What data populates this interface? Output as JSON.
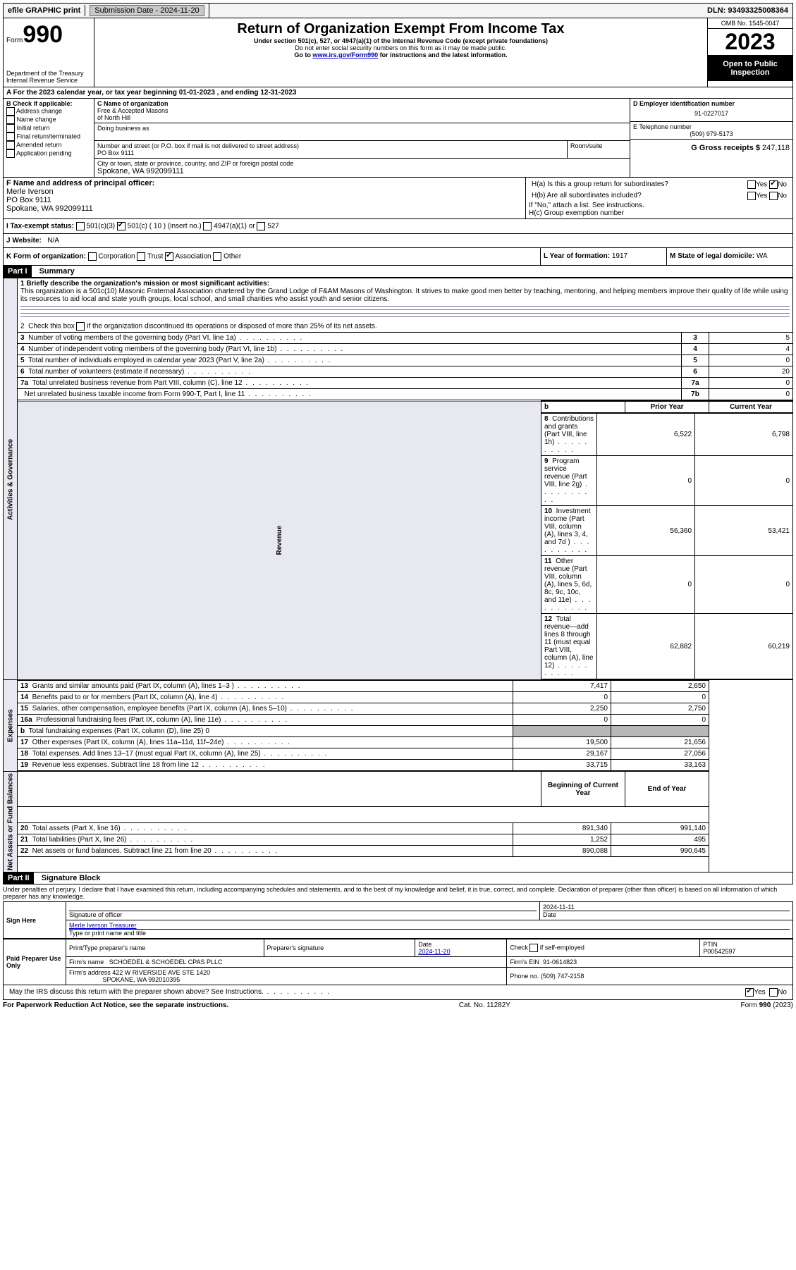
{
  "topBar": {
    "efile": "efile GRAPHIC print",
    "submission": "Submission Date - 2024-11-20",
    "dln": "DLN: 93493325008364"
  },
  "header": {
    "formWord": "Form",
    "formNum": "990",
    "title": "Return of Organization Exempt From Income Tax",
    "sub1": "Under section 501(c), 527, or 4947(a)(1) of the Internal Revenue Code (except private foundations)",
    "sub2": "Do not enter social security numbers on this form as it may be made public.",
    "sub3a": "Go to ",
    "sub3link": "www.irs.gov/Form990",
    "sub3b": " for instructions and the latest information.",
    "dept": "Department of the Treasury",
    "irs": "Internal Revenue Service",
    "omb": "OMB No. 1545-0047",
    "year": "2023",
    "open": "Open to Public Inspection"
  },
  "rowA": "A For the 2023 calendar year, or tax year beginning 01-01-2023   , and ending 12-31-2023",
  "boxB": {
    "label": "B Check if applicable:",
    "items": [
      "Address change",
      "Name change",
      "Initial return",
      "Final return/terminated",
      "Amended return",
      "Application pending"
    ]
  },
  "boxC": {
    "nameLabel": "C Name of organization",
    "name1": "Free & Accepted Masons",
    "name2": "of North Hill",
    "dba": "Doing business as",
    "streetLabel": "Number and street (or P.O. box if mail is not delivered to street address)",
    "street": "PO Box 9111",
    "room": "Room/suite",
    "cityLabel": "City or town, state or province, country, and ZIP or foreign postal code",
    "city": "Spokane, WA  992099111"
  },
  "boxD": {
    "label": "D Employer identification number",
    "value": "91-0227017"
  },
  "boxE": {
    "label": "E Telephone number",
    "value": "(509) 979-5173"
  },
  "boxG": {
    "label": "G Gross receipts $",
    "value": "247,118"
  },
  "boxF": {
    "label": "F  Name and address of principal officer:",
    "name": "Merle Iverson",
    "addr1": "PO Box 9111",
    "addr2": "Spokane, WA  992099111"
  },
  "boxH": {
    "ha": "H(a)  Is this a group return for subordinates?",
    "hb": "H(b)  Are all subordinates included?",
    "hnote": "If \"No,\" attach a list. See instructions.",
    "hc": "H(c)  Group exemption number",
    "yes": "Yes",
    "no": "No"
  },
  "rowI": {
    "label": "I   Tax-exempt status:",
    "c3": "501(c)(3)",
    "c": "501(c) ( 10 ) (insert no.)",
    "a47": "4947(a)(1) or",
    "n527": "527"
  },
  "rowJ": {
    "label": "J   Website:",
    "value": "N/A"
  },
  "rowK": {
    "label": "K Form of organization:",
    "corp": "Corporation",
    "trust": "Trust",
    "assoc": "Association",
    "other": "Other"
  },
  "rowL": {
    "label": "L Year of formation:",
    "value": "1917"
  },
  "rowM": {
    "label": "M State of legal domicile:",
    "value": "WA"
  },
  "part1": {
    "hdr": "Part I",
    "title": "Summary"
  },
  "summary": {
    "line1label": "1   Briefly describe the organization's mission or most significant activities:",
    "mission": "This organization is a 501c(10) Masonic Fraternal Association chartered by the Grand Lodge of F&AM Masons of Washington. It strives to make good men better by teaching, mentoring, and helping members improve their quality of life while using its resources to aid local and state youth groups, local school, and small charities who assist youth and senior citizens.",
    "line2": "2   Check this box   if the organization discontinued its operations or disposed of more than 25% of its net assets.",
    "rows": [
      {
        "n": "3",
        "t": "Number of voting members of the governing body (Part VI, line 1a)",
        "c": "3",
        "v": "5"
      },
      {
        "n": "4",
        "t": "Number of independent voting members of the governing body (Part VI, line 1b)",
        "c": "4",
        "v": "4"
      },
      {
        "n": "5",
        "t": "Total number of individuals employed in calendar year 2023 (Part V, line 2a)",
        "c": "5",
        "v": "0"
      },
      {
        "n": "6",
        "t": "Total number of volunteers (estimate if necessary)",
        "c": "6",
        "v": "20"
      },
      {
        "n": "7a",
        "t": "Total unrelated business revenue from Part VIII, column (C), line 12",
        "c": "7a",
        "v": "0"
      },
      {
        "n": "",
        "t": "Net unrelated business taxable income from Form 990-T, Part I, line 11",
        "c": "7b",
        "v": "0"
      }
    ],
    "priorHdr": "Prior Year",
    "currHdr": "Current Year",
    "revRows": [
      {
        "n": "8",
        "t": "Contributions and grants (Part VIII, line 1h)",
        "p": "6,522",
        "c": "6,798"
      },
      {
        "n": "9",
        "t": "Program service revenue (Part VIII, line 2g)",
        "p": "0",
        "c": "0"
      },
      {
        "n": "10",
        "t": "Investment income (Part VIII, column (A), lines 3, 4, and 7d )",
        "p": "56,360",
        "c": "53,421"
      },
      {
        "n": "11",
        "t": "Other revenue (Part VIII, column (A), lines 5, 6d, 8c, 9c, 10c, and 11e)",
        "p": "0",
        "c": "0"
      },
      {
        "n": "12",
        "t": "Total revenue—add lines 8 through 11 (must equal Part VIII, column (A), line 12)",
        "p": "62,882",
        "c": "60,219"
      }
    ],
    "expRows": [
      {
        "n": "13",
        "t": "Grants and similar amounts paid (Part IX, column (A), lines 1–3 )",
        "p": "7,417",
        "c": "2,650"
      },
      {
        "n": "14",
        "t": "Benefits paid to or for members (Part IX, column (A), line 4)",
        "p": "0",
        "c": "0"
      },
      {
        "n": "15",
        "t": "Salaries, other compensation, employee benefits (Part IX, column (A), lines 5–10)",
        "p": "2,250",
        "c": "2,750"
      },
      {
        "n": "16a",
        "t": "Professional fundraising fees (Part IX, column (A), line 11e)",
        "p": "0",
        "c": "0"
      },
      {
        "n": "b",
        "t": "Total fundraising expenses (Part IX, column (D), line 25) 0",
        "p": "",
        "c": "",
        "shaded": true
      },
      {
        "n": "17",
        "t": "Other expenses (Part IX, column (A), lines 11a–11d, 11f–24e)",
        "p": "19,500",
        "c": "21,656"
      },
      {
        "n": "18",
        "t": "Total expenses. Add lines 13–17 (must equal Part IX, column (A), line 25)",
        "p": "29,167",
        "c": "27,056"
      },
      {
        "n": "19",
        "t": "Revenue less expenses. Subtract line 18 from line 12",
        "p": "33,715",
        "c": "33,163"
      }
    ],
    "begHdr": "Beginning of Current Year",
    "endHdr": "End of Year",
    "netRows": [
      {
        "n": "20",
        "t": "Total assets (Part X, line 16)",
        "p": "891,340",
        "c": "991,140"
      },
      {
        "n": "21",
        "t": "Total liabilities (Part X, line 26)",
        "p": "1,252",
        "c": "495"
      },
      {
        "n": "22",
        "t": "Net assets or fund balances. Subtract line 21 from line 20",
        "p": "890,088",
        "c": "990,645"
      }
    ],
    "sideLabels": {
      "gov": "Activities & Governance",
      "rev": "Revenue",
      "exp": "Expenses",
      "net": "Net Assets or Fund Balances"
    }
  },
  "part2": {
    "hdr": "Part II",
    "title": "Signature Block"
  },
  "perjury": "Under penalties of perjury, I declare that I have examined this return, including accompanying schedules and statements, and to the best of my knowledge and belief, it is true, correct, and complete. Declaration of preparer (other than officer) is based on all information of which preparer has any knowledge.",
  "sign": {
    "here": "Sign Here",
    "sigOfficer": "Signature of officer",
    "date": "Date",
    "dateVal": "2024-11-11",
    "nameTitle": "Merle Iverson  Treasurer",
    "typeName": "Type or print name and title"
  },
  "paid": {
    "label": "Paid Preparer Use Only",
    "prepName": "Print/Type preparer's name",
    "prepSig": "Preparer's signature",
    "dateLabel": "Date",
    "dateVal": "2024-11-20",
    "check": "Check        if self-employed",
    "ptinLabel": "PTIN",
    "ptin": "P00542597",
    "firmName": "Firm's name",
    "firm": "SCHOEDEL & SCHOEDEL CPAS PLLC",
    "firmEin": "Firm's EIN",
    "ein": "91-0614823",
    "firmAddr": "Firm's address",
    "addr1": "422 W RIVERSIDE AVE STE 1420",
    "addr2": "SPOKANE, WA  992010395",
    "phone": "Phone no.",
    "phoneVal": "(509) 747-2158"
  },
  "discuss": "May the IRS discuss this return with the preparer shown above? See Instructions.",
  "footer": {
    "left": "For Paperwork Reduction Act Notice, see the separate instructions.",
    "mid": "Cat. No. 11282Y",
    "right": "Form 990 (2023)"
  },
  "yesno": {
    "yes": "Yes",
    "no": "No"
  }
}
